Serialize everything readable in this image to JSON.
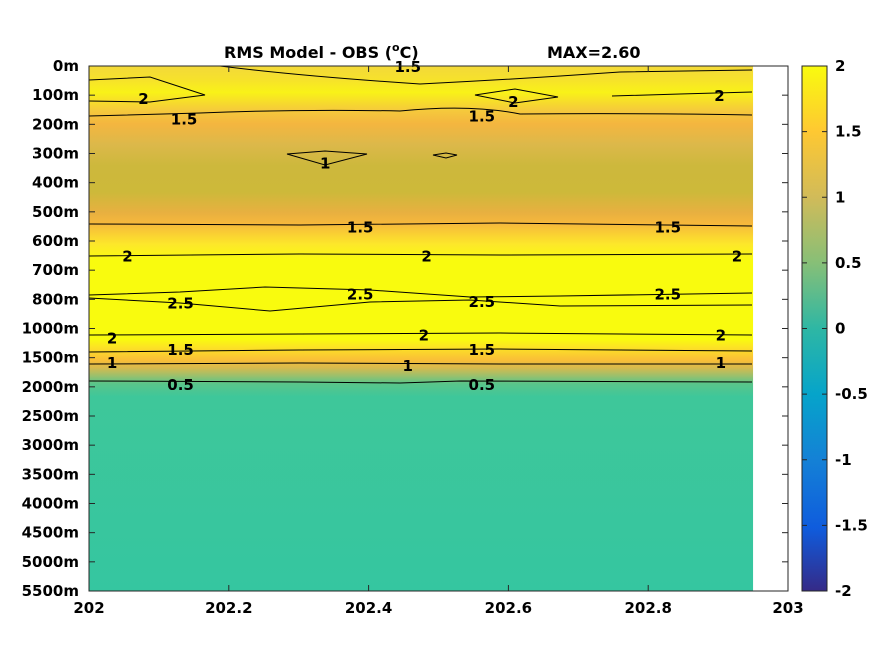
{
  "chart_data": {
    "type": "heatmap",
    "title": "RMS Model - OBS (",
    "title_super": "o",
    "title_unit": "C)",
    "max_label": "MAX=2.60",
    "x_ticks": [
      "202",
      "202.2",
      "202.4",
      "202.6",
      "202.8",
      "203"
    ],
    "xlim": [
      202,
      203
    ],
    "x_data_end": 202.95,
    "y_ticks": [
      "0m",
      "100m",
      "200m",
      "300m",
      "400m",
      "500m",
      "600m",
      "700m",
      "800m",
      "1000m",
      "1500m",
      "2000m",
      "2500m",
      "3000m",
      "3500m",
      "4000m",
      "4500m",
      "5000m",
      "5500m"
    ],
    "y_axis_direction": "depth increasing downward, evenly spaced levels",
    "colorbar": {
      "range": [
        -2,
        2
      ],
      "ticks": [
        "2",
        "1.5",
        "1",
        "0.5",
        "0",
        "-0.5",
        "-1",
        "-1.5",
        "-2"
      ],
      "colormap": "parula",
      "colors": [
        "#352a87",
        "#0f5cdd",
        "#1481d6",
        "#06a4ca",
        "#2eb7a4",
        "#87bf77",
        "#d1bb59",
        "#fec832",
        "#f9fb0e"
      ]
    },
    "depth_profile": {
      "levels": [
        "0m",
        "100m",
        "200m",
        "300m",
        "400m",
        "500m",
        "600m",
        "700m",
        "800m",
        "1000m",
        "1500m",
        "2000m",
        "2500m",
        "3000m",
        "3500m",
        "4000m",
        "4500m",
        "5000m",
        "5500m"
      ],
      "rms_values": [
        1.6,
        1.8,
        1.4,
        1.0,
        1.1,
        1.4,
        1.9,
        2.3,
        2.6,
        2.3,
        1.4,
        0.6,
        0.6,
        0.6,
        0.6,
        0.6,
        0.6,
        0.6,
        0.6
      ]
    },
    "contour_labels": [
      {
        "x": 202.456,
        "level": 0.0,
        "text": "1.5"
      },
      {
        "x": 202.078,
        "level": 1.1,
        "text": "2"
      },
      {
        "x": 202.607,
        "level": 1.2,
        "text": "2"
      },
      {
        "x": 202.902,
        "level": 1.0,
        "text": "2"
      },
      {
        "x": 202.136,
        "level": 1.8,
        "text": "1.5"
      },
      {
        "x": 202.562,
        "level": 1.7,
        "text": "1.5"
      },
      {
        "x": 202.338,
        "level": 3.3,
        "text": "1"
      },
      {
        "x": 202.388,
        "level": 5.5,
        "text": "1.5"
      },
      {
        "x": 202.828,
        "level": 5.5,
        "text": "1.5"
      },
      {
        "x": 202.055,
        "level": 6.5,
        "text": "2"
      },
      {
        "x": 202.483,
        "level": 6.5,
        "text": "2"
      },
      {
        "x": 202.927,
        "level": 6.5,
        "text": "2"
      },
      {
        "x": 202.131,
        "level": 8.1,
        "text": "2.5"
      },
      {
        "x": 202.388,
        "level": 7.8,
        "text": "2.5"
      },
      {
        "x": 202.562,
        "level": 8.05,
        "text": "2.5"
      },
      {
        "x": 202.828,
        "level": 7.8,
        "text": "2.5"
      },
      {
        "x": 202.033,
        "level": 9.3,
        "text": "2"
      },
      {
        "x": 202.479,
        "level": 9.2,
        "text": "2"
      },
      {
        "x": 202.904,
        "level": 9.2,
        "text": "2"
      },
      {
        "x": 202.131,
        "level": 9.7,
        "text": "1.5"
      },
      {
        "x": 202.562,
        "level": 9.7,
        "text": "1.5"
      },
      {
        "x": 202.033,
        "level": 10.15,
        "text": "1"
      },
      {
        "x": 202.456,
        "level": 10.25,
        "text": "1"
      },
      {
        "x": 202.904,
        "level": 10.15,
        "text": "1"
      },
      {
        "x": 202.131,
        "level": 10.9,
        "text": "0.5"
      },
      {
        "x": 202.562,
        "level": 10.9,
        "text": "0.5"
      }
    ]
  }
}
